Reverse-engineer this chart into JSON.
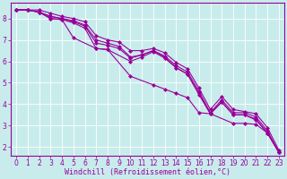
{
  "xlabel": "Windchill (Refroidissement éolien,°C)",
  "background_color": "#c8ecec",
  "line_color": "#990099",
  "grid_color": "#ffffff",
  "xlim": [
    -0.5,
    23.5
  ],
  "ylim": [
    1.6,
    8.75
  ],
  "xtick_vals": [
    0,
    1,
    2,
    3,
    4,
    5,
    6,
    7,
    8,
    9,
    10,
    11,
    12,
    13,
    14,
    15,
    16,
    17,
    18,
    19,
    20,
    21,
    22,
    23
  ],
  "xtick_labels": [
    "0",
    "1",
    "2",
    "3",
    "4",
    "5",
    "6",
    "7",
    "8",
    "9",
    "10",
    "11",
    "12",
    "13",
    "14",
    "15",
    "16",
    "17",
    "18",
    "19",
    "20",
    "21",
    "22",
    "23"
  ],
  "ytick_vals": [
    2,
    3,
    4,
    5,
    6,
    7,
    8
  ],
  "ytick_labels": [
    "2",
    "3",
    "4",
    "5",
    "6",
    "7",
    "8"
  ],
  "lines": [
    {
      "x": [
        0,
        1,
        2,
        3,
        4,
        5,
        7,
        8,
        10,
        12,
        13,
        14,
        15,
        16,
        17,
        19,
        20,
        21,
        22,
        23
      ],
      "y": [
        8.4,
        8.4,
        8.3,
        8.0,
        7.95,
        7.1,
        6.6,
        6.55,
        5.3,
        4.9,
        4.7,
        4.5,
        4.3,
        3.6,
        3.55,
        3.1,
        3.1,
        3.05,
        2.65,
        1.75
      ]
    },
    {
      "x": [
        0,
        1,
        2,
        3,
        4,
        5,
        6,
        7,
        8,
        10,
        11,
        12,
        13,
        14,
        15,
        16,
        17,
        18,
        19,
        20,
        21,
        22,
        23
      ],
      "y": [
        8.4,
        8.4,
        8.3,
        8.0,
        7.95,
        7.8,
        7.55,
        6.6,
        6.55,
        6.0,
        6.2,
        6.45,
        6.15,
        5.7,
        5.4,
        4.45,
        3.55,
        4.1,
        3.5,
        3.5,
        3.25,
        2.65,
        1.75
      ]
    },
    {
      "x": [
        0,
        1,
        2,
        3,
        4,
        5,
        6,
        7,
        8,
        9,
        10,
        11,
        12,
        13,
        14,
        15,
        16,
        17,
        18,
        19,
        20,
        21,
        22,
        23
      ],
      "y": [
        8.4,
        8.4,
        8.3,
        8.1,
        8.0,
        7.85,
        7.65,
        6.85,
        6.75,
        6.6,
        6.15,
        6.3,
        6.5,
        6.2,
        5.7,
        5.4,
        4.5,
        3.55,
        4.1,
        3.5,
        3.5,
        3.3,
        2.65,
        1.75
      ]
    },
    {
      "x": [
        0,
        1,
        2,
        3,
        4,
        5,
        6,
        7,
        8,
        9,
        10,
        11,
        12,
        13,
        14,
        15,
        16,
        17,
        18,
        19,
        20,
        21,
        22,
        23
      ],
      "y": [
        8.4,
        8.4,
        8.3,
        8.1,
        8.0,
        7.9,
        7.7,
        7.0,
        6.85,
        6.7,
        6.2,
        6.3,
        6.5,
        6.25,
        5.8,
        5.5,
        4.6,
        3.6,
        4.2,
        3.6,
        3.6,
        3.4,
        2.75,
        1.75
      ]
    },
    {
      "x": [
        0,
        1,
        2,
        3,
        4,
        5,
        6,
        7,
        8,
        9,
        10,
        11,
        12,
        13,
        14,
        15,
        16,
        17,
        18,
        19,
        20,
        21,
        22,
        23
      ],
      "y": [
        8.4,
        8.4,
        8.4,
        8.25,
        8.1,
        8.0,
        7.85,
        7.2,
        7.0,
        6.9,
        6.5,
        6.5,
        6.6,
        6.4,
        5.95,
        5.65,
        4.75,
        3.75,
        4.35,
        3.75,
        3.65,
        3.55,
        2.9,
        1.85
      ]
    }
  ],
  "marker": "D",
  "markersize": 2.0,
  "linewidth": 0.8,
  "tick_fontsize": 5.5,
  "label_fontsize": 6.0
}
